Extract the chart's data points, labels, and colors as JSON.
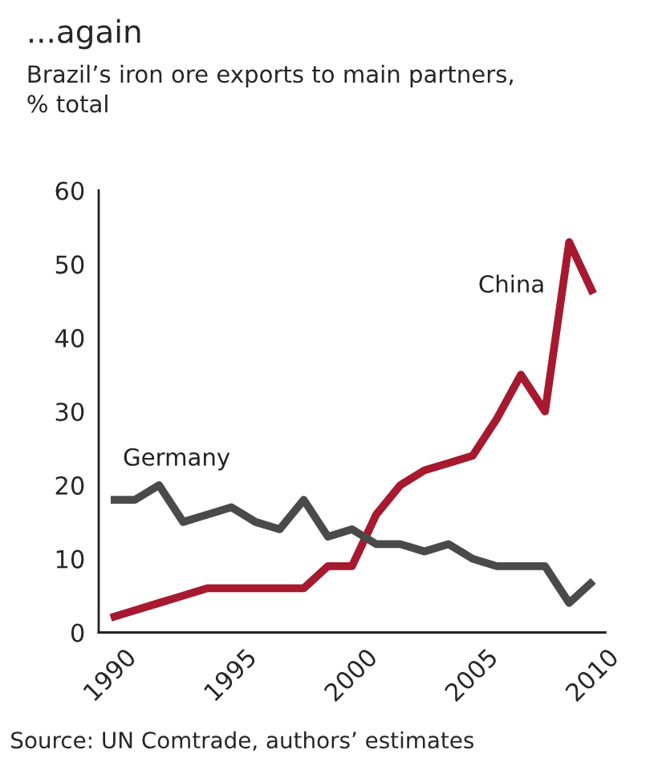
{
  "chart_data": {
    "type": "line",
    "title": "...again",
    "subtitle": "Brazil’s iron ore exports to main partners,\n% total",
    "x": [
      1990,
      1991,
      1992,
      1993,
      1994,
      1995,
      1996,
      1997,
      1998,
      1999,
      2000,
      2001,
      2002,
      2003,
      2004,
      2005,
      2006,
      2007,
      2008,
      2009,
      2010
    ],
    "series": [
      {
        "name": "China",
        "color": "#a6192e",
        "values": [
          2,
          3,
          4,
          5,
          6,
          6,
          6,
          6,
          6,
          9,
          9,
          16,
          20,
          22,
          23,
          24,
          29,
          35,
          30,
          53,
          46
        ]
      },
      {
        "name": "Germany",
        "color": "#4a4a4a",
        "values": [
          18,
          18,
          20,
          15,
          16,
          17,
          15,
          14,
          18,
          13,
          14,
          12,
          12,
          11,
          12,
          10,
          9,
          9,
          9,
          4,
          7
        ]
      }
    ],
    "xlim": [
      1989.5,
      2010.5
    ],
    "xticks": [
      1990,
      1995,
      2000,
      2005,
      2010
    ],
    "ylim": [
      0,
      60
    ],
    "yticks": [
      0,
      10,
      20,
      30,
      40,
      50,
      60
    ],
    "grid": false,
    "legend": false,
    "marker": "none",
    "line_style": "solid",
    "annotations": [
      "Source: UN Comtrade, authors’ estimates"
    ]
  }
}
